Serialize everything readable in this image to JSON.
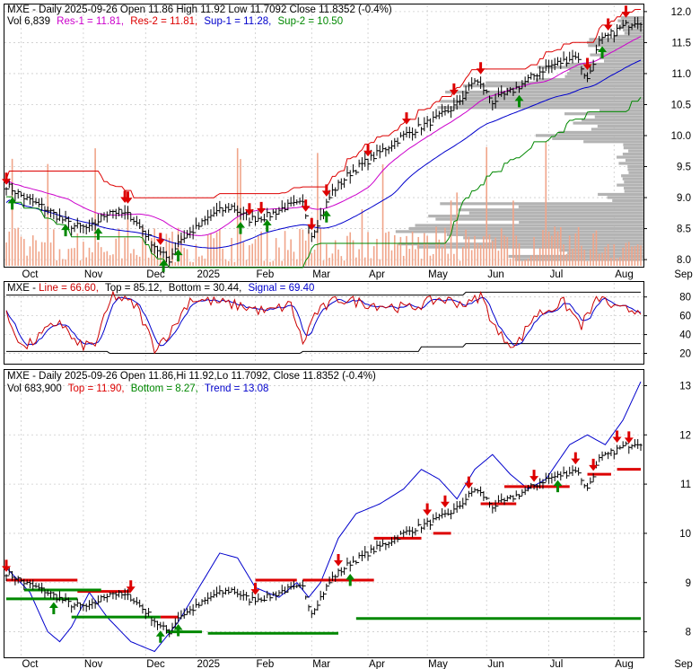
{
  "chart_data": [
    {
      "type": "line",
      "panel": "price-volume",
      "title": "MXE - Daily 2025-09-26 Open 11.86  High 11.92  Low 11.7092  Close 11.8352 (-0.4%)",
      "legend_line2": [
        {
          "text": "Vol 6,839",
          "color": "#000000"
        },
        {
          "text": "Res-1 = 11.81,",
          "color": "#cc00cc"
        },
        {
          "text": "Res-2 = 11.81,",
          "color": "#dd0000"
        },
        {
          "text": "Sup-1 = 11.28,",
          "color": "#0000cc"
        },
        {
          "text": "Sup-2 = 10.50",
          "color": "#008800"
        }
      ],
      "ylim": [
        7.9,
        12.1
      ],
      "yticks": [
        8.0,
        8.5,
        9.0,
        9.5,
        10.0,
        10.5,
        11.0,
        11.5,
        12.0
      ],
      "ytick_labels": [
        "8.0",
        "8.5",
        "9.0",
        "9.5",
        "10.0",
        "10.5",
        "11.0",
        "11.5",
        "12.0"
      ],
      "x_labels": [
        "Oct",
        "Nov",
        "Dec",
        "2025",
        "Feb",
        "Mar",
        "Apr",
        "May",
        "Jun",
        "Jul",
        "Aug",
        "Sep"
      ],
      "close_anchors": [
        [
          0,
          9.2
        ],
        [
          6,
          9.0
        ],
        [
          14,
          8.8
        ],
        [
          22,
          8.55
        ],
        [
          28,
          8.5
        ],
        [
          35,
          8.8
        ],
        [
          42,
          8.7
        ],
        [
          48,
          8.35
        ],
        [
          52,
          8.1
        ],
        [
          55,
          8.0
        ],
        [
          58,
          8.3
        ],
        [
          64,
          8.5
        ],
        [
          70,
          8.75
        ],
        [
          76,
          8.85
        ],
        [
          82,
          8.65
        ],
        [
          88,
          8.7
        ],
        [
          94,
          8.85
        ],
        [
          100,
          8.9
        ],
        [
          103,
          8.4
        ],
        [
          106,
          8.7
        ],
        [
          110,
          9.1
        ],
        [
          116,
          9.4
        ],
        [
          122,
          9.6
        ],
        [
          128,
          9.8
        ],
        [
          134,
          10.0
        ],
        [
          140,
          10.15
        ],
        [
          146,
          10.3
        ],
        [
          152,
          10.5
        ],
        [
          158,
          10.9
        ],
        [
          161,
          10.75
        ],
        [
          164,
          10.55
        ],
        [
          170,
          10.7
        ],
        [
          176,
          10.9
        ],
        [
          182,
          11.1
        ],
        [
          188,
          11.2
        ],
        [
          192,
          11.3
        ],
        [
          196,
          10.9
        ],
        [
          200,
          11.5
        ],
        [
          206,
          11.7
        ],
        [
          212,
          11.85
        ],
        [
          214,
          11.84
        ]
      ],
      "signals": {
        "sell": [
          0,
          40,
          41,
          52,
          82,
          86,
          101,
          103,
          108,
          122,
          135,
          151,
          160,
          196,
          203,
          209
        ],
        "buy": [
          2,
          20,
          31,
          53,
          58,
          79,
          88,
          108,
          173,
          201
        ]
      },
      "volume_max_label": "",
      "volume_profile": true
    },
    {
      "type": "line",
      "panel": "stochastic",
      "title_parts": [
        {
          "text": "MXE - ",
          "color": "#000000"
        },
        {
          "text": "Line = 66.60,",
          "color": "#cc0000"
        },
        {
          "text": "Top = 85.12,",
          "color": "#000000"
        },
        {
          "text": "Bottom = 30.44,",
          "color": "#000000"
        },
        {
          "text": "Signal = 69.40",
          "color": "#0000cc"
        }
      ],
      "ylim": [
        10,
        95
      ],
      "yticks": [
        20,
        40,
        60,
        80
      ],
      "ytick_labels": [
        "20",
        "40",
        "60",
        "80"
      ]
    },
    {
      "type": "line",
      "panel": "trend",
      "title": "MXE - Daily 2025-09-26 Open 11.86,Hi 11.92,Lo 11.7092, Close 11.8352 (-0.4%)",
      "legend_line2": [
        {
          "text": "Vol 683,900",
          "color": "#000000"
        },
        {
          "text": "Top = 11.90,",
          "color": "#dd0000"
        },
        {
          "text": "Bottom = 8.27,",
          "color": "#008800"
        },
        {
          "text": "Trend = 13.08",
          "color": "#0000cc"
        }
      ],
      "ylim": [
        7.5,
        13.3
      ],
      "yticks": [
        8,
        9,
        10,
        11,
        12,
        13
      ],
      "ytick_labels": [
        "8",
        "9",
        "10",
        "11",
        "12",
        "13"
      ],
      "x_labels": [
        "Oct",
        "Nov",
        "Dec",
        "2025",
        "Feb",
        "Mar",
        "Apr",
        "May",
        "Jun",
        "Jul",
        "Aug",
        "Sep"
      ],
      "trend_anchors": [
        [
          0,
          9.3
        ],
        [
          8,
          8.8
        ],
        [
          14,
          8.0
        ],
        [
          18,
          7.8
        ],
        [
          22,
          8.1
        ],
        [
          28,
          8.8
        ],
        [
          34,
          8.3
        ],
        [
          42,
          7.8
        ],
        [
          50,
          7.6
        ],
        [
          58,
          8.2
        ],
        [
          66,
          9.0
        ],
        [
          72,
          9.6
        ],
        [
          78,
          9.5
        ],
        [
          84,
          8.9
        ],
        [
          92,
          8.7
        ],
        [
          98,
          9.0
        ],
        [
          102,
          8.7
        ],
        [
          106,
          9.0
        ],
        [
          112,
          9.9
        ],
        [
          118,
          10.4
        ],
        [
          126,
          10.6
        ],
        [
          134,
          10.9
        ],
        [
          140,
          11.3
        ],
        [
          146,
          11.1
        ],
        [
          152,
          10.7
        ],
        [
          158,
          11.3
        ],
        [
          164,
          11.6
        ],
        [
          170,
          11.2
        ],
        [
          176,
          10.9
        ],
        [
          182,
          11.1
        ],
        [
          190,
          11.8
        ],
        [
          196,
          12.0
        ],
        [
          202,
          11.8
        ],
        [
          208,
          12.3
        ],
        [
          214,
          13.08
        ]
      ],
      "top_levels": [
        [
          0,
          24,
          9.05
        ],
        [
          24,
          42,
          8.82
        ],
        [
          52,
          58,
          8.3
        ],
        [
          84,
          98,
          9.05
        ],
        [
          100,
          124,
          9.05
        ],
        [
          124,
          140,
          9.9
        ],
        [
          144,
          150,
          10.0
        ],
        [
          160,
          172,
          10.6
        ],
        [
          168,
          190,
          10.95
        ],
        [
          196,
          204,
          11.2
        ],
        [
          206,
          214,
          11.3
        ],
        [
          214,
          216,
          11.9
        ]
      ],
      "bottom_levels": [
        [
          0,
          24,
          8.67
        ],
        [
          6,
          32,
          8.85
        ],
        [
          22,
          52,
          8.3
        ],
        [
          54,
          66,
          8.0
        ],
        [
          68,
          112,
          7.97
        ],
        [
          118,
          216,
          8.27
        ]
      ],
      "signals": {
        "sell": [
          0,
          42,
          84,
          112,
          142,
          148,
          156,
          178,
          192,
          198,
          206,
          210
        ],
        "buy": [
          16,
          52,
          58,
          116,
          186
        ]
      }
    }
  ]
}
